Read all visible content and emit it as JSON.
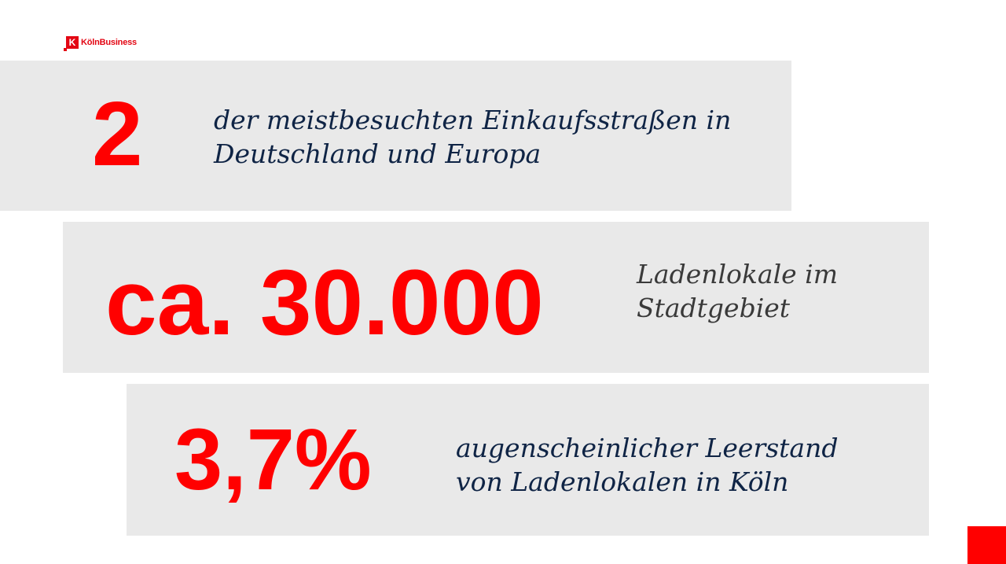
{
  "brand": {
    "logo_letter": "K",
    "logo_text": "KölnBusiness",
    "accent_color": "#ff0000",
    "logo_color": "#e30613",
    "text_color": "#0f2445",
    "panel_color": "#e9e9e9"
  },
  "facts": [
    {
      "value": "2",
      "lines": [
        "der meistbesuchten Einkaufsstraßen in",
        "Deutschland und Europa"
      ]
    },
    {
      "value": "ca. 30.000",
      "lines": [
        "Ladenlokale im",
        "Stadtgebiet"
      ]
    },
    {
      "value": "3,7%",
      "lines": [
        "augenscheinlicher Leerstand",
        "von Ladenlokalen in Köln"
      ]
    }
  ]
}
